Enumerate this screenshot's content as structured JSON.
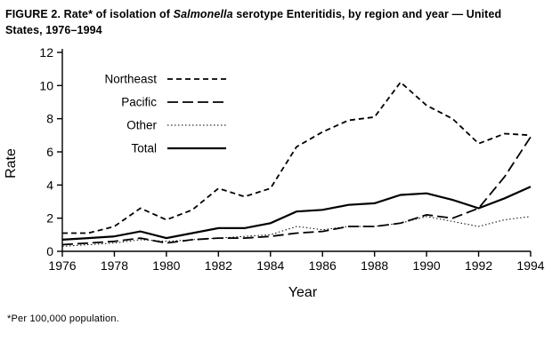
{
  "title": {
    "prefix": "FIGURE 2. Rate* of isolation of ",
    "italic": "Salmonella",
    "suffix": " serotype Enteritidis, by region and year — United States, 1976–1994"
  },
  "footnote": "*Per 100,000 population.",
  "chart_data": {
    "type": "line",
    "title": "Rate of isolation of Salmonella serotype Enteritidis, by region and year — United States, 1976–1994",
    "xlabel": "Year",
    "ylabel": "Rate",
    "xlim": [
      1976,
      1994
    ],
    "ylim": [
      0,
      12
    ],
    "xticks": [
      1976,
      1978,
      1980,
      1982,
      1984,
      1986,
      1988,
      1990,
      1992,
      1994
    ],
    "yticks": [
      0,
      2,
      4,
      6,
      8,
      10,
      12
    ],
    "grid": false,
    "legend_position": "upper-left-inside",
    "line_color": "#000000",
    "x": [
      1976,
      1977,
      1978,
      1979,
      1980,
      1981,
      1982,
      1983,
      1984,
      1985,
      1986,
      1987,
      1988,
      1989,
      1990,
      1991,
      1992,
      1993,
      1994
    ],
    "series": [
      {
        "name": "Northeast",
        "style": "dashed",
        "values": [
          1.1,
          1.1,
          1.5,
          2.6,
          1.9,
          2.5,
          3.8,
          3.3,
          3.8,
          6.3,
          7.2,
          7.9,
          8.1,
          10.2,
          8.8,
          8.0,
          6.5,
          7.1,
          7.0
        ]
      },
      {
        "name": "Pacific",
        "style": "longdash",
        "values": [
          0.4,
          0.5,
          0.6,
          0.8,
          0.5,
          0.7,
          0.8,
          0.8,
          0.9,
          1.1,
          1.2,
          1.5,
          1.5,
          1.7,
          2.2,
          2.0,
          2.6,
          4.5,
          6.9
        ]
      },
      {
        "name": "Other",
        "style": "dotted",
        "values": [
          0.3,
          0.4,
          0.5,
          0.7,
          0.6,
          0.7,
          0.8,
          0.9,
          1.0,
          1.5,
          1.3,
          1.5,
          1.5,
          1.7,
          2.1,
          1.8,
          1.5,
          1.9,
          2.1
        ]
      },
      {
        "name": "Total",
        "style": "solid",
        "values": [
          0.7,
          0.8,
          0.9,
          1.2,
          0.8,
          1.1,
          1.4,
          1.4,
          1.7,
          2.4,
          2.5,
          2.8,
          2.9,
          3.4,
          3.5,
          3.1,
          2.6,
          3.2,
          3.9
        ]
      }
    ]
  }
}
